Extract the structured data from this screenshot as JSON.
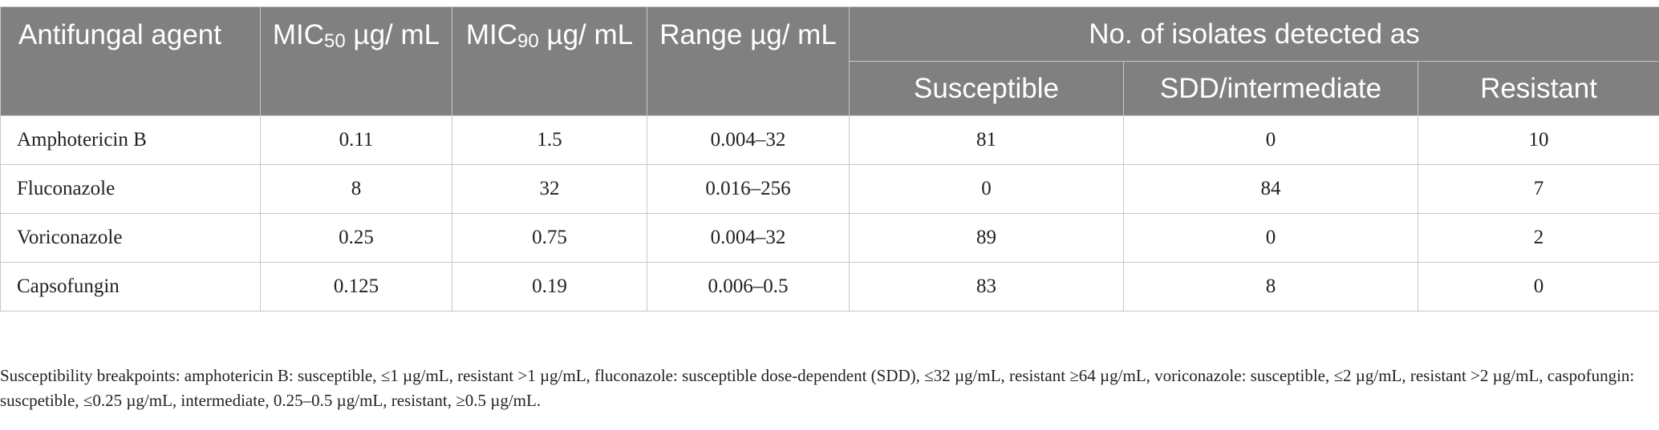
{
  "table": {
    "headers": {
      "agent": "Antifungal agent",
      "mic50_prefix": "MIC",
      "mic50_sub": "50",
      "mic50_unit": " µg/ mL",
      "mic90_prefix": "MIC",
      "mic90_sub": "90",
      "mic90_unit": " µg/ mL",
      "range": "Range µg/ mL",
      "group": "No. of isolates detected as",
      "susceptible": "Susceptible",
      "sdd": "SDD/intermediate",
      "resistant": "Resistant"
    },
    "rows": [
      {
        "agent": "Amphotericin B",
        "mic50": "0.11",
        "mic90": "1.5",
        "range": "0.004–32",
        "susceptible": "81",
        "sdd": "0",
        "resistant": "10"
      },
      {
        "agent": "Fluconazole",
        "mic50": "8",
        "mic90": "32",
        "range": "0.016–256",
        "susceptible": "0",
        "sdd": "84",
        "resistant": "7"
      },
      {
        "agent": "Voriconazole",
        "mic50": "0.25",
        "mic90": "0.75",
        "range": "0.004–32",
        "susceptible": "89",
        "sdd": "0",
        "resistant": "2"
      },
      {
        "agent": "Capsofungin",
        "mic50": "0.125",
        "mic90": "0.19",
        "range": "0.006–0.5",
        "susceptible": "83",
        "sdd": "8",
        "resistant": "0"
      }
    ]
  },
  "footnote": "Susceptibility breakpoints: amphotericin B: susceptible, ≤1 µg/mL, resistant >1 µg/mL, fluconazole: susceptible dose-dependent (SDD), ≤32 µg/mL, resistant ≥64 µg/mL, voriconazole: susceptible, ≤2 µg/mL, resistant >2 µg/mL, caspofungin: suscpetible, ≤0.25 µg/mL, intermediate, 0.25–0.5 µg/mL, resistant, ≥0.5 µg/mL."
}
